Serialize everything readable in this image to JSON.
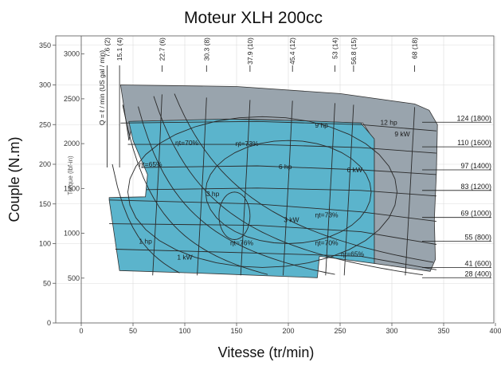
{
  "chart_data": {
    "type": "area",
    "title": "Moteur XLH 200cc",
    "xlabel": "Vitesse (tr/min)",
    "ylabel": "Couple (N.m)",
    "xlim": [
      0,
      400
    ],
    "ylim": [
      0,
      360
    ],
    "x_ticks": [
      0,
      50,
      100,
      150,
      200,
      250,
      300,
      350,
      400
    ],
    "y_ticks": [
      0,
      50,
      100,
      150,
      200,
      250,
      300,
      350
    ],
    "inner_torque_label": "Torque (lbf-in)",
    "inner_torque_ticks": [
      {
        "label": "500",
        "value": 56.5
      },
      {
        "label": "1000",
        "value": 113
      },
      {
        "label": "1500",
        "value": 169.5
      },
      {
        "label": "2000",
        "value": 226
      },
      {
        "label": "2500",
        "value": 282.5
      },
      {
        "label": "3000",
        "value": 339
      }
    ],
    "flow_axis_label": "Q = ℓ / min (US gal / min)",
    "flow_labels": [
      {
        "label": "7.6 (2)",
        "speed": 25
      },
      {
        "label": "15.1 (4)",
        "speed": 37
      },
      {
        "label": "22.7 (6)",
        "speed": 78
      },
      {
        "label": "30.3 (8)",
        "speed": 121
      },
      {
        "label": "37.9 (10)",
        "speed": 163
      },
      {
        "label": "45.4 (12)",
        "speed": 204
      },
      {
        "label": "53 (14)",
        "speed": 245
      },
      {
        "label": "56.8 (15)",
        "speed": 263
      },
      {
        "label": "68 (18)",
        "speed": 322
      }
    ],
    "pressure_labels": [
      {
        "label": "124 (1800)",
        "torque": 253
      },
      {
        "label": "110 (1600)",
        "torque": 222
      },
      {
        "label": "97 (1400)",
        "torque": 193
      },
      {
        "label": "83 (1200)",
        "torque": 167
      },
      {
        "label": "69 (1000)",
        "torque": 133
      },
      {
        "label": "55 (800)",
        "torque": 103
      },
      {
        "label": "41 (600)",
        "torque": 70
      },
      {
        "label": "28 (400)",
        "torque": 57
      }
    ],
    "power_labels": [
      {
        "label": "1 hp",
        "speed": 62,
        "torque": 100
      },
      {
        "label": "1 kW",
        "speed": 100,
        "torque": 80
      },
      {
        "label": "3 hp",
        "speed": 127,
        "torque": 160
      },
      {
        "label": "3 kW",
        "speed": 203,
        "torque": 127
      },
      {
        "label": "6 hp",
        "speed": 197,
        "torque": 194
      },
      {
        "label": "6 kW",
        "speed": 264,
        "torque": 190
      },
      {
        "label": "9 hp",
        "speed": 232,
        "torque": 246
      },
      {
        "label": "9 kW",
        "speed": 310,
        "torque": 235
      },
      {
        "label": "12 hp",
        "speed": 297,
        "torque": 250
      }
    ],
    "efficiency_labels": [
      {
        "label": "ηt=70%",
        "speed": 102,
        "torque": 224
      },
      {
        "label": "ηt=73%",
        "speed": 160,
        "torque": 223
      },
      {
        "label": "ηt=65%",
        "speed": 67,
        "torque": 197
      },
      {
        "label": "ηt=73%",
        "speed": 237,
        "torque": 133
      },
      {
        "label": "ηt=76%",
        "speed": 155,
        "torque": 98
      },
      {
        "label": "ηt=70%",
        "speed": 237,
        "torque": 98
      },
      {
        "label": "ηt=65%",
        "speed": 262,
        "torque": 84
      }
    ],
    "colors": {
      "grey_region": "#99a4ad",
      "blue_region": "#5bb4cc",
      "curve": "#2a2a2a",
      "grid": "#dcdcdc"
    }
  }
}
